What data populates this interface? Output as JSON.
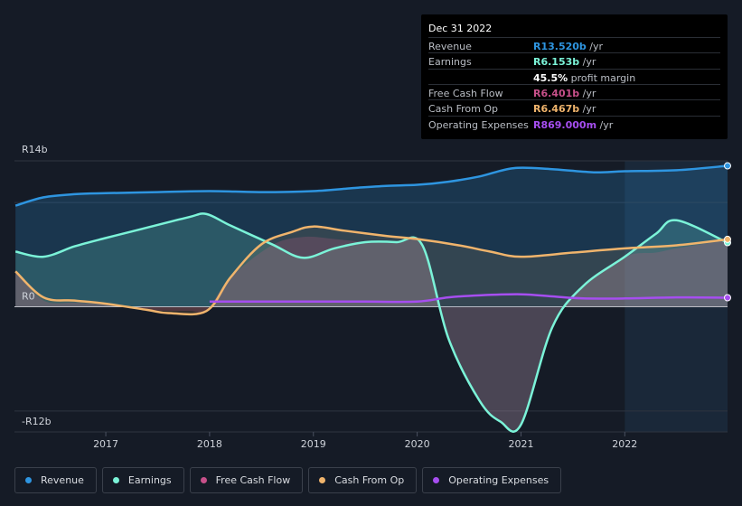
{
  "chart_data": {
    "type": "area",
    "y_axis": {
      "labels": [
        "R14b",
        "R0",
        "-R12b"
      ],
      "values": [
        14,
        0,
        -12
      ],
      "ylim": [
        -12,
        14
      ]
    },
    "x_axis": {
      "labels": [
        "2017",
        "2018",
        "2019",
        "2020",
        "2021",
        "2022"
      ],
      "values": [
        2017,
        2018,
        2019,
        2020,
        2021,
        2022
      ],
      "xlim": [
        2016.12,
        2022.99
      ]
    },
    "series": [
      {
        "name": "Revenue",
        "color": "#2e95e0",
        "x": [
          2016.13,
          2016.4,
          2016.7,
          2017.0,
          2017.5,
          2018.0,
          2018.5,
          2019.0,
          2019.4,
          2019.7,
          2020.0,
          2020.3,
          2020.6,
          2020.93,
          2021.3,
          2021.7,
          2022.0,
          2022.5,
          2022.99
        ],
        "y": [
          9.7,
          10.5,
          10.8,
          10.9,
          11.0,
          11.1,
          11.0,
          11.1,
          11.4,
          11.6,
          11.7,
          12.0,
          12.5,
          13.3,
          13.2,
          12.9,
          13.0,
          13.1,
          13.52
        ]
      },
      {
        "name": "Earnings",
        "color": "#7bf3d8",
        "x": [
          2016.13,
          2016.4,
          2016.7,
          2017.0,
          2017.4,
          2017.8,
          2017.97,
          2018.2,
          2018.6,
          2018.9,
          2019.2,
          2019.5,
          2019.8,
          2020.05,
          2020.3,
          2020.6,
          2020.8,
          2021.0,
          2021.3,
          2021.6,
          2022.0,
          2022.3,
          2022.5,
          2022.99
        ],
        "y": [
          5.3,
          4.8,
          5.8,
          6.6,
          7.6,
          8.6,
          8.9,
          7.8,
          6.0,
          4.7,
          5.6,
          6.2,
          6.2,
          5.9,
          -3.0,
          -9.0,
          -11.0,
          -11.3,
          -2.0,
          2.0,
          4.8,
          7.0,
          8.3,
          6.153
        ]
      },
      {
        "name": "Free Cash Flow",
        "color": "#c7508a",
        "x": [
          2016.13,
          2016.4,
          2016.7,
          2017.0,
          2017.4,
          2017.8,
          2017.97,
          2018.2,
          2018.6,
          2018.9,
          2019.2,
          2019.5,
          2019.8,
          2020.05,
          2020.3,
          2020.6,
          2020.8,
          2021.0,
          2021.3,
          2021.6,
          2022.0,
          2022.3,
          2022.5,
          2022.99
        ],
        "y": [
          3.4,
          0.6,
          0.4,
          0.2,
          -0.3,
          -0.4,
          -0.3,
          2.8,
          5.9,
          6.7,
          6.5,
          6.2,
          6.1,
          5.9,
          -3.0,
          -9.0,
          -11.0,
          -11.3,
          -2.0,
          2.0,
          4.8,
          5.2,
          5.6,
          6.401
        ]
      },
      {
        "name": "Cash From Op",
        "color": "#f0b46c",
        "x": [
          2016.13,
          2016.4,
          2016.7,
          2017.0,
          2017.4,
          2017.6,
          2017.97,
          2018.2,
          2018.5,
          2018.8,
          2019.0,
          2019.3,
          2019.7,
          2020.0,
          2020.4,
          2020.7,
          2021.0,
          2021.5,
          2022.0,
          2022.5,
          2022.99
        ],
        "y": [
          3.4,
          0.9,
          0.6,
          0.3,
          -0.3,
          -0.6,
          -0.4,
          2.8,
          6.0,
          7.2,
          7.7,
          7.3,
          6.8,
          6.5,
          5.9,
          5.3,
          4.8,
          5.2,
          5.6,
          5.9,
          6.467
        ]
      },
      {
        "name": "Operating Expenses",
        "color": "#a64ef0",
        "x": [
          2018.0,
          2018.5,
          2019.0,
          2019.5,
          2020.0,
          2020.3,
          2020.6,
          2021.0,
          2021.3,
          2021.6,
          2022.0,
          2022.5,
          2022.99
        ],
        "y": [
          0.5,
          0.5,
          0.5,
          0.5,
          0.5,
          0.9,
          1.1,
          1.2,
          1.0,
          0.8,
          0.8,
          0.9,
          0.869
        ]
      }
    ],
    "tooltip": {
      "date": "Dec 31 2022",
      "rows": [
        {
          "label": "Revenue",
          "value": "R13.520b",
          "unit": " /yr",
          "color": "#2e95e0"
        },
        {
          "label": "Earnings",
          "value": "R6.153b",
          "unit": " /yr",
          "color": "#7bf3d8"
        },
        {
          "label": "",
          "value": "45.5%",
          "unit": " profit margin",
          "color": "#ffffff"
        },
        {
          "label": "Free Cash Flow",
          "value": "R6.401b",
          "unit": " /yr",
          "color": "#c7508a"
        },
        {
          "label": "Cash From Op",
          "value": "R6.467b",
          "unit": " /yr",
          "color": "#f0b46c"
        },
        {
          "label": "Operating Expenses",
          "value": "R869.000m",
          "unit": " /yr",
          "color": "#a64ef0"
        }
      ]
    },
    "highlight_from": 2022.0,
    "legend": [
      {
        "label": "Revenue",
        "color": "#2e95e0"
      },
      {
        "label": "Earnings",
        "color": "#7bf3d8"
      },
      {
        "label": "Free Cash Flow",
        "color": "#c7508a"
      },
      {
        "label": "Cash From Op",
        "color": "#f0b46c"
      },
      {
        "label": "Operating Expenses",
        "color": "#a64ef0"
      }
    ]
  }
}
